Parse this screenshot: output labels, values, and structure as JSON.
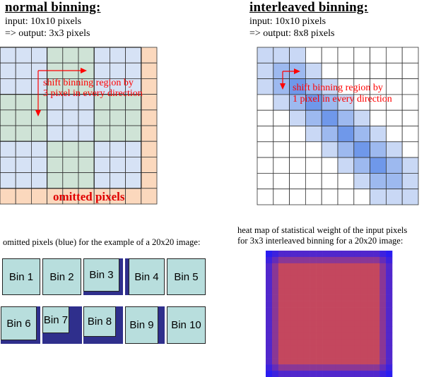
{
  "left": {
    "title": "normal binning:",
    "input": "input: 10x10 pixels",
    "output": "=> output: 3x3 pixels",
    "shift_line1": "shift binning region by",
    "shift_line2": "3 pixel in every direction",
    "omitted": "omitted pixels",
    "caption": "omitted pixels (blue) for the example of a 20x20 image:"
  },
  "right": {
    "title": "interleaved binning:",
    "input": "input: 10x10 pixels",
    "output": "=> output: 8x8 pixels",
    "shift_line1": "shift binning region by",
    "shift_line2": "1 pixel in every direction",
    "caption_line1": "heat map of statistical weight of the input pixels",
    "caption_line2": "for 3x3 interleaved binning for a 20x20 image:"
  },
  "bins": [
    "Bin 1",
    "Bin 2",
    "Bin 3",
    "Bin 4",
    "Bin 5",
    "Bin 6",
    "Bin 7",
    "Bin 8",
    "Bin 9",
    "Bin 10"
  ],
  "colors": {
    "blue_cell": "#d6e2f5",
    "green_cell": "#cfe3d6",
    "orange_cell": "#fbd8bd",
    "grid": "#333333",
    "annotation_red": "#ff0000",
    "bin_fill": "#b8dedd",
    "bin_shadow": "#2f2f8c",
    "interleaved_blue": "#3b6fe8",
    "heat_outer": "#2a1cf0",
    "heat_center": "#c4475e"
  }
}
